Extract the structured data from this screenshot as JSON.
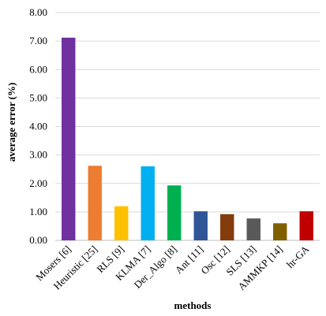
{
  "chart_data": {
    "type": "bar",
    "title": "",
    "xlabel": "methods",
    "ylabel": "average error (%)",
    "ylim": [
      0,
      8
    ],
    "yticks": [
      "0.00",
      "1.00",
      "2.00",
      "3.00",
      "4.00",
      "5.00",
      "6.00",
      "7.00",
      "8.00"
    ],
    "grid": true,
    "legend": "none",
    "categories": [
      "Mosers [6]",
      "Heuristic [25]",
      "RLS [9]",
      "KLMA [7]",
      "Der_Algo [8]",
      "Ant [11]",
      "Osc [12]",
      "SLS [13]",
      "AMMKP [14]",
      "hr-GA"
    ],
    "values": [
      7.12,
      2.62,
      1.2,
      2.6,
      1.93,
      1.02,
      0.92,
      0.77,
      0.6,
      1.02
    ],
    "colors": [
      "#7030a0",
      "#ed7d31",
      "#ffc000",
      "#00b0f0",
      "#00b050",
      "#2f5597",
      "#843c0c",
      "#595959",
      "#7f6000",
      "#c00000"
    ]
  }
}
